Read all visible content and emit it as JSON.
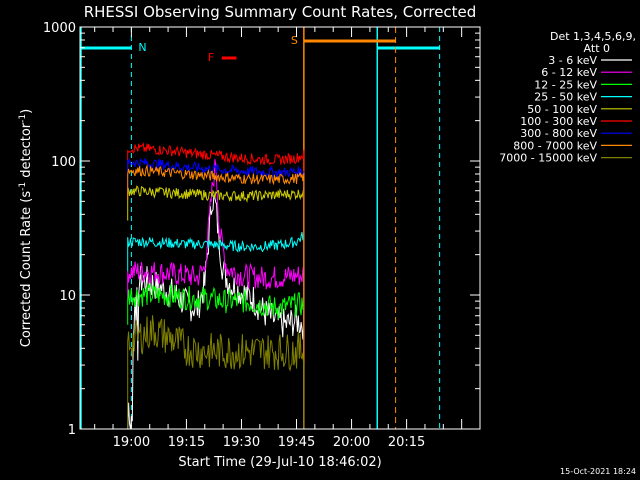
{
  "chart_data": {
    "type": "line",
    "title": "RHESSI Observing Summary Count Rates, Corrected",
    "xlabel": "Start Time (29-Jul-10 18:46:02)",
    "ylabel": "Corrected Count Rate (s",
    "ylabel_sup": "-1",
    "ylabel_mid": " detector",
    "ylabel_sup2": "-1",
    "ylabel_end": ")",
    "yscale": "log",
    "ylim": [
      1,
      1000
    ],
    "xlim": [
      "18:46",
      "20:35"
    ],
    "y_ticks": [
      "1",
      "10",
      "100",
      "1000"
    ],
    "x_ticks": [
      "19:00",
      "19:15",
      "19:30",
      "19:45",
      "20:00",
      "20:15"
    ],
    "legend_header": [
      "Det 1,3,4,5,6,9,",
      "Att 0"
    ],
    "legend_position": "top-right",
    "timestamp": "15-Oct-2021 18:24",
    "annotations": {
      "night_label": "N",
      "saa_label": "S",
      "flare_label": "F"
    },
    "night_intervals": [
      [
        "18:46",
        "19:00"
      ],
      [
        "20:07",
        "20:24"
      ]
    ],
    "saa_interval": [
      "19:47",
      "20:12"
    ],
    "flare_interval": [
      "19:26",
      "19:30"
    ],
    "series": [
      {
        "name": "3 - 6 keV",
        "color": "#ffffff",
        "x": [
          "19:00",
          "19:01",
          "19:03",
          "19:06",
          "19:09",
          "19:12",
          "19:15",
          "19:18",
          "19:20",
          "19:21",
          "19:22",
          "19:23",
          "19:24",
          "19:25",
          "19:27",
          "19:30",
          "19:33",
          "19:36",
          "19:39",
          "19:42",
          "19:45",
          "19:47"
        ],
        "y": [
          2.2,
          12,
          13,
          12,
          11,
          10,
          8.5,
          8,
          12,
          25,
          55,
          45,
          25,
          15,
          12,
          10.5,
          9.5,
          7.5,
          6.5,
          6,
          6.5,
          6
        ]
      },
      {
        "name": "6 - 12 keV",
        "color": "#ff00ff",
        "x": [
          "19:00",
          "19:05",
          "19:10",
          "19:15",
          "19:18",
          "19:20",
          "19:22",
          "19:23",
          "19:24",
          "19:26",
          "19:30",
          "19:35",
          "19:40",
          "19:45",
          "19:47"
        ],
        "y": [
          15,
          15,
          14.5,
          14,
          13.5,
          16,
          60,
          100,
          30,
          16,
          14,
          13.5,
          13.5,
          14,
          14
        ]
      },
      {
        "name": "12 - 25 keV",
        "color": "#00ff00",
        "x": [
          "19:00",
          "19:05",
          "19:10",
          "19:15",
          "19:20",
          "19:25",
          "19:30",
          "19:35",
          "19:40",
          "19:45",
          "19:47"
        ],
        "y": [
          10,
          10,
          10,
          9.5,
          9.5,
          9,
          9,
          8.5,
          8,
          8.5,
          8.5
        ]
      },
      {
        "name": "25 - 50 keV",
        "color": "#00ffff",
        "x": [
          "19:00",
          "19:05",
          "19:10",
          "19:15",
          "19:20",
          "19:25",
          "19:30",
          "19:35",
          "19:40",
          "19:45",
          "19:47"
        ],
        "y": [
          25,
          25,
          24.5,
          24,
          24,
          23.5,
          23,
          23,
          23.5,
          25,
          28
        ]
      },
      {
        "name": "50 - 100 keV",
        "color": "#cccc00",
        "x": [
          "19:00",
          "19:05",
          "19:10",
          "19:15",
          "19:20",
          "19:25",
          "19:30",
          "19:35",
          "19:40",
          "19:45",
          "19:47"
        ],
        "y": [
          60,
          59,
          58,
          57,
          56,
          55,
          55,
          55,
          56,
          57,
          58
        ]
      },
      {
        "name": "100 - 300 keV",
        "color": "#ff0000",
        "x": [
          "19:00",
          "19:05",
          "19:10",
          "19:15",
          "19:20",
          "19:25",
          "19:30",
          "19:35",
          "19:40",
          "19:45",
          "19:47"
        ],
        "y": [
          125,
          123,
          120,
          115,
          112,
          108,
          105,
          103,
          102,
          105,
          112
        ]
      },
      {
        "name": "300 - 800 keV",
        "color": "#0000ff",
        "x": [
          "19:00",
          "19:05",
          "19:10",
          "19:15",
          "19:20",
          "19:25",
          "19:30",
          "19:35",
          "19:40",
          "19:45",
          "19:47"
        ],
        "y": [
          98,
          96,
          93,
          90,
          88,
          86,
          84,
          83,
          82,
          83,
          84
        ]
      },
      {
        "name": "800 - 7000 keV",
        "color": "#ff8800",
        "x": [
          "19:00",
          "19:05",
          "19:10",
          "19:15",
          "19:20",
          "19:25",
          "19:30",
          "19:35",
          "19:40",
          "19:45",
          "19:47"
        ],
        "y": [
          85,
          84,
          82,
          80,
          78,
          76,
          74,
          73,
          73,
          74,
          76
        ]
      },
      {
        "name": "7000 - 15000 keV",
        "color": "#808000",
        "x": [
          "19:00",
          "19:03",
          "19:06",
          "19:09",
          "19:12",
          "19:15",
          "19:20",
          "19:25",
          "19:30",
          "19:35",
          "19:40",
          "19:45",
          "19:47"
        ],
        "y": [
          4.5,
          5,
          5.5,
          5,
          4.5,
          4,
          3.8,
          3.8,
          3.8,
          3.8,
          3.8,
          3.8,
          3.9
        ]
      }
    ]
  }
}
